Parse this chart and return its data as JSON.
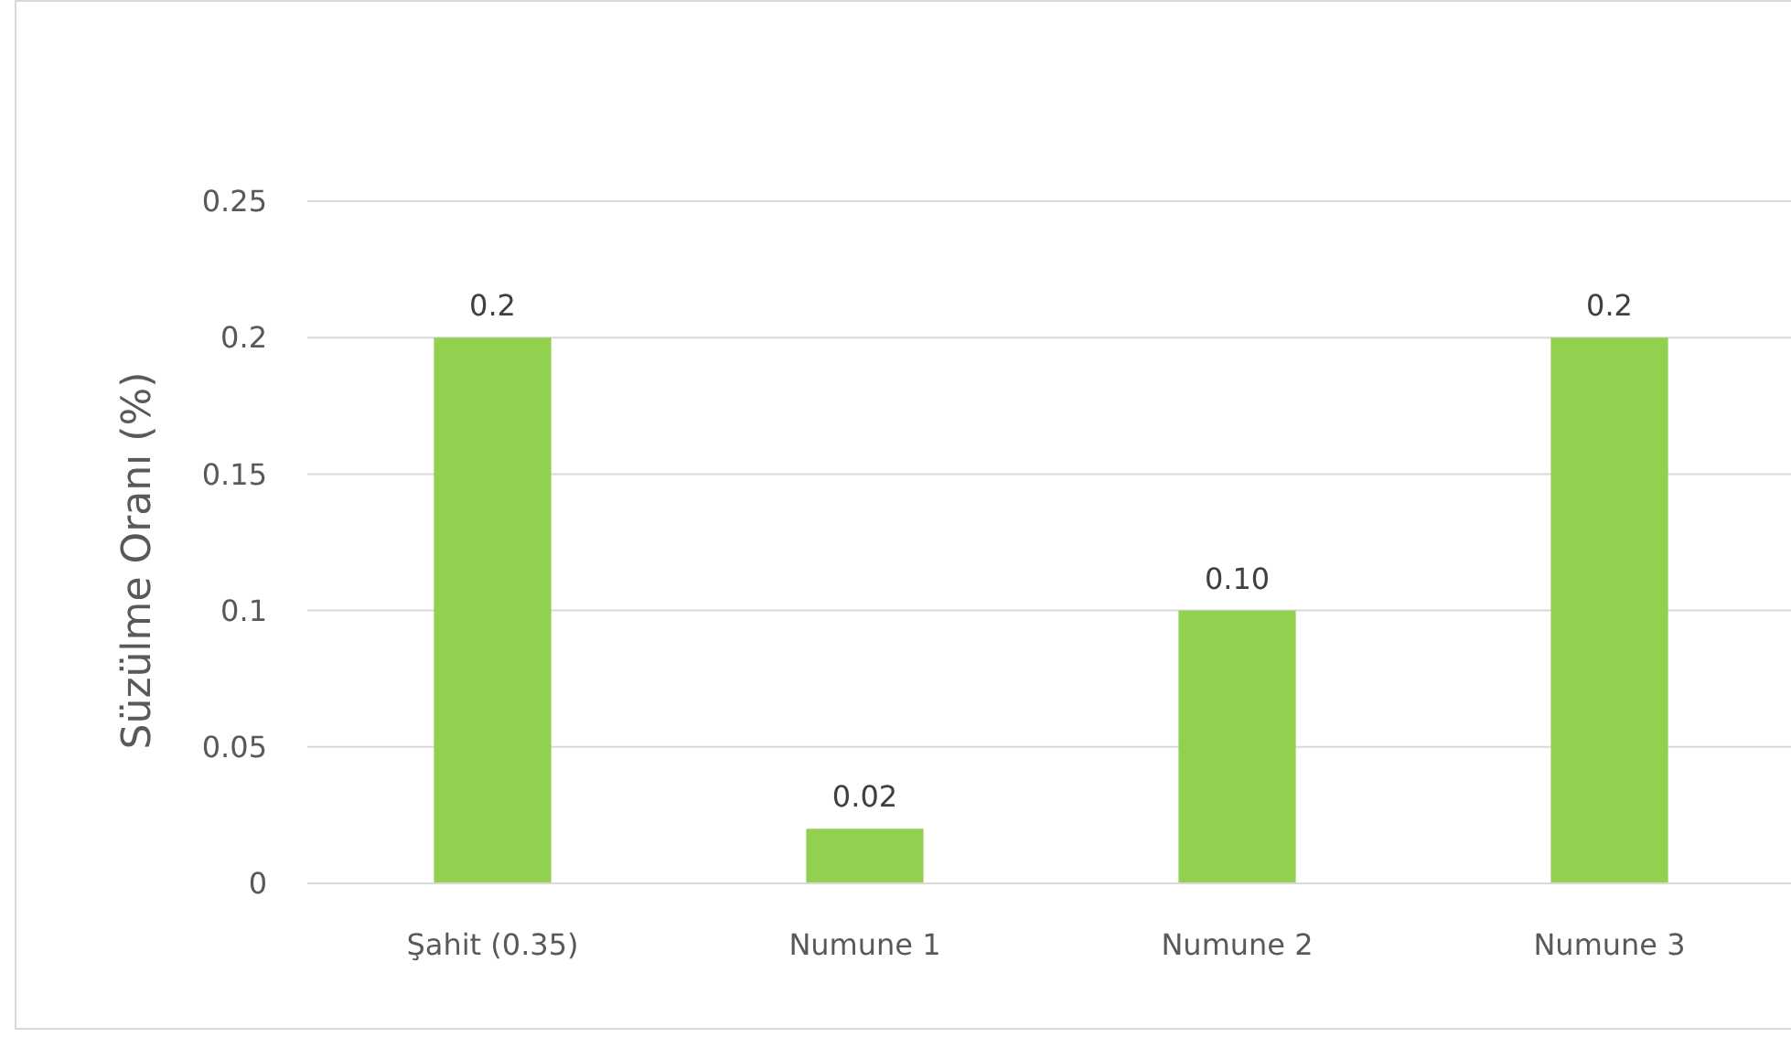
{
  "chart_data": {
    "type": "bar",
    "ylabel": "Süzülme Oranı (%)",
    "categories": [
      "Şahit (0.35)",
      "Numune 1",
      "Numune 2",
      "Numune 3"
    ],
    "values": [
      0.2,
      0.02,
      0.1,
      0.2
    ],
    "value_labels": [
      "0.2",
      "0.02",
      "0.10",
      "0.2"
    ],
    "color": "#92d050",
    "ylim": [
      0,
      0.25
    ],
    "yticks": [
      0,
      0.05,
      0.1,
      0.15,
      0.2,
      0.25
    ],
    "grid": "y"
  }
}
